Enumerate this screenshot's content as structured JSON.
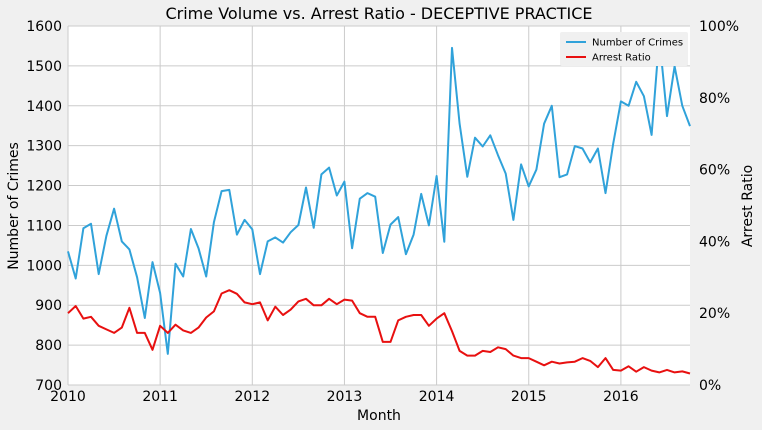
{
  "chart_data": {
    "type": "line",
    "title": "Crime Volume vs. Arrest Ratio - DECEPTIVE PRACTICE",
    "xlabel": "Month",
    "ylabel_left": "Number of Crimes",
    "ylabel_right": "Arrest Ratio",
    "ylim_left": [
      700,
      1600
    ],
    "ylim_right": [
      0,
      1
    ],
    "xlim": [
      2010,
      2016.75
    ],
    "xticks": [
      {
        "value": 2010,
        "label": "2010"
      },
      {
        "value": 2011,
        "label": "2011"
      },
      {
        "value": 2012,
        "label": "2012"
      },
      {
        "value": 2013,
        "label": "2013"
      },
      {
        "value": 2014,
        "label": "2014"
      },
      {
        "value": 2015,
        "label": "2015"
      },
      {
        "value": 2016,
        "label": "2016"
      }
    ],
    "yticks_left": [
      {
        "value": 700,
        "label": "700"
      },
      {
        "value": 800,
        "label": "800"
      },
      {
        "value": 900,
        "label": "900"
      },
      {
        "value": 1000,
        "label": "1000"
      },
      {
        "value": 1100,
        "label": "1100"
      },
      {
        "value": 1200,
        "label": "1200"
      },
      {
        "value": 1300,
        "label": "1300"
      },
      {
        "value": 1400,
        "label": "1400"
      },
      {
        "value": 1500,
        "label": "1500"
      },
      {
        "value": 1600,
        "label": "1600"
      }
    ],
    "yticks_right": [
      {
        "value": 0,
        "label": "0%"
      },
      {
        "value": 0.2,
        "label": "20%"
      },
      {
        "value": 0.4,
        "label": "40%"
      },
      {
        "value": 0.6,
        "label": "60%"
      },
      {
        "value": 0.8,
        "label": "80%"
      },
      {
        "value": 1.0,
        "label": "100%"
      }
    ],
    "grid": true,
    "legend_position": "top-right",
    "series": [
      {
        "name": "Number of Crimes",
        "axis": "left",
        "color": "#30a2da",
        "start": "2010-01",
        "values": [
          1035,
          967,
          1093,
          1104,
          978,
          1074,
          1142,
          1060,
          1040,
          970,
          868,
          1008,
          931,
          778,
          1004,
          972,
          1091,
          1043,
          972,
          1108,
          1186,
          1189,
          1077,
          1114,
          1090,
          978,
          1060,
          1070,
          1057,
          1083,
          1101,
          1195,
          1094,
          1228,
          1245,
          1175,
          1210,
          1043,
          1167,
          1181,
          1172,
          1031,
          1102,
          1121,
          1028,
          1077,
          1179,
          1100,
          1224,
          1059,
          1545,
          1355,
          1222,
          1320,
          1298,
          1326,
          1276,
          1230,
          1114,
          1253,
          1198,
          1240,
          1355,
          1400,
          1221,
          1228,
          1299,
          1293,
          1258,
          1293,
          1181,
          1305,
          1411,
          1400,
          1460,
          1424,
          1327,
          1572,
          1374,
          1499,
          1400,
          1349
        ]
      },
      {
        "name": "Arrest Ratio",
        "axis": "right",
        "color": "#e81010",
        "start": "2010-01",
        "values": [
          0.2,
          0.22,
          0.185,
          0.19,
          0.165,
          0.155,
          0.145,
          0.16,
          0.215,
          0.145,
          0.145,
          0.098,
          0.165,
          0.145,
          0.168,
          0.152,
          0.145,
          0.16,
          0.188,
          0.205,
          0.255,
          0.264,
          0.254,
          0.23,
          0.225,
          0.23,
          0.18,
          0.218,
          0.195,
          0.21,
          0.233,
          0.24,
          0.222,
          0.222,
          0.24,
          0.225,
          0.238,
          0.235,
          0.2,
          0.19,
          0.19,
          0.12,
          0.12,
          0.18,
          0.19,
          0.195,
          0.195,
          0.165,
          0.185,
          0.2,
          0.15,
          0.095,
          0.082,
          0.082,
          0.095,
          0.092,
          0.105,
          0.1,
          0.082,
          0.075,
          0.075,
          0.065,
          0.055,
          0.065,
          0.06,
          0.063,
          0.065,
          0.075,
          0.067,
          0.05,
          0.075,
          0.042,
          0.04,
          0.052,
          0.037,
          0.05,
          0.04,
          0.035,
          0.042,
          0.035,
          0.038,
          0.032
        ]
      }
    ]
  }
}
